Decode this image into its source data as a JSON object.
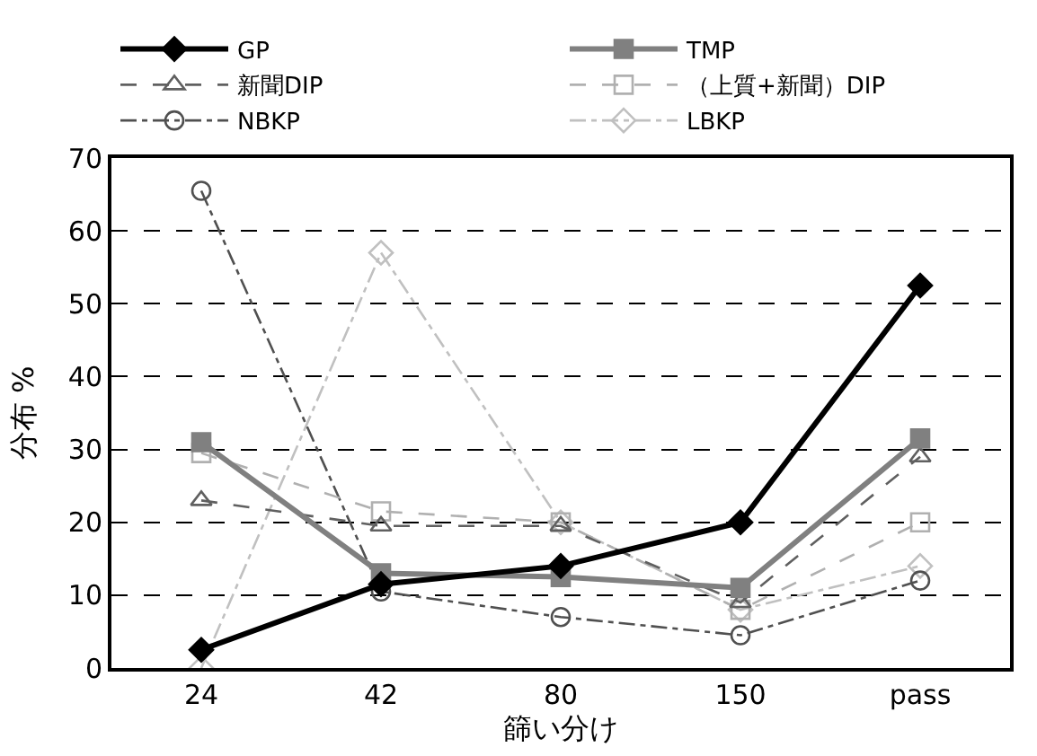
{
  "chart_data": {
    "type": "line",
    "xlabel": "篩い分け",
    "ylabel": "分布 %",
    "categories": [
      "24",
      "42",
      "80",
      "150",
      "pass"
    ],
    "ylim": [
      0,
      70
    ],
    "yticks": [
      0,
      10,
      20,
      30,
      40,
      50,
      60,
      70
    ],
    "grid": "y",
    "legend": "top",
    "series": [
      {
        "name": "GP",
        "color": "#000000",
        "marker": "diamond",
        "line_style": "solid",
        "values": [
          2.5,
          11.5,
          14,
          20,
          52.5
        ]
      },
      {
        "name": "TMP",
        "color": "#808080",
        "marker": "square",
        "line_style": "solid",
        "values": [
          31,
          13,
          12.5,
          11,
          31.5
        ]
      },
      {
        "name": "新聞DIP",
        "color": "#606060",
        "marker": "triangle",
        "line_style": "dashed",
        "values": [
          23,
          19.5,
          19.5,
          9,
          29
        ]
      },
      {
        "name": "（上質+新聞）DIP",
        "color": "#b0b0b0",
        "marker": "square",
        "line_style": "dashed",
        "values": [
          29.5,
          21.5,
          20,
          8,
          20
        ]
      },
      {
        "name": "NBKP",
        "color": "#505050",
        "marker": "circle",
        "line_style": "dashdot",
        "values": [
          65.5,
          10.5,
          7,
          4.5,
          12
        ]
      },
      {
        "name": "LBKP",
        "color": "#c0c0c0",
        "marker": "diamond",
        "line_style": "dashdot",
        "values": [
          0,
          57,
          20,
          8,
          14
        ]
      }
    ]
  }
}
